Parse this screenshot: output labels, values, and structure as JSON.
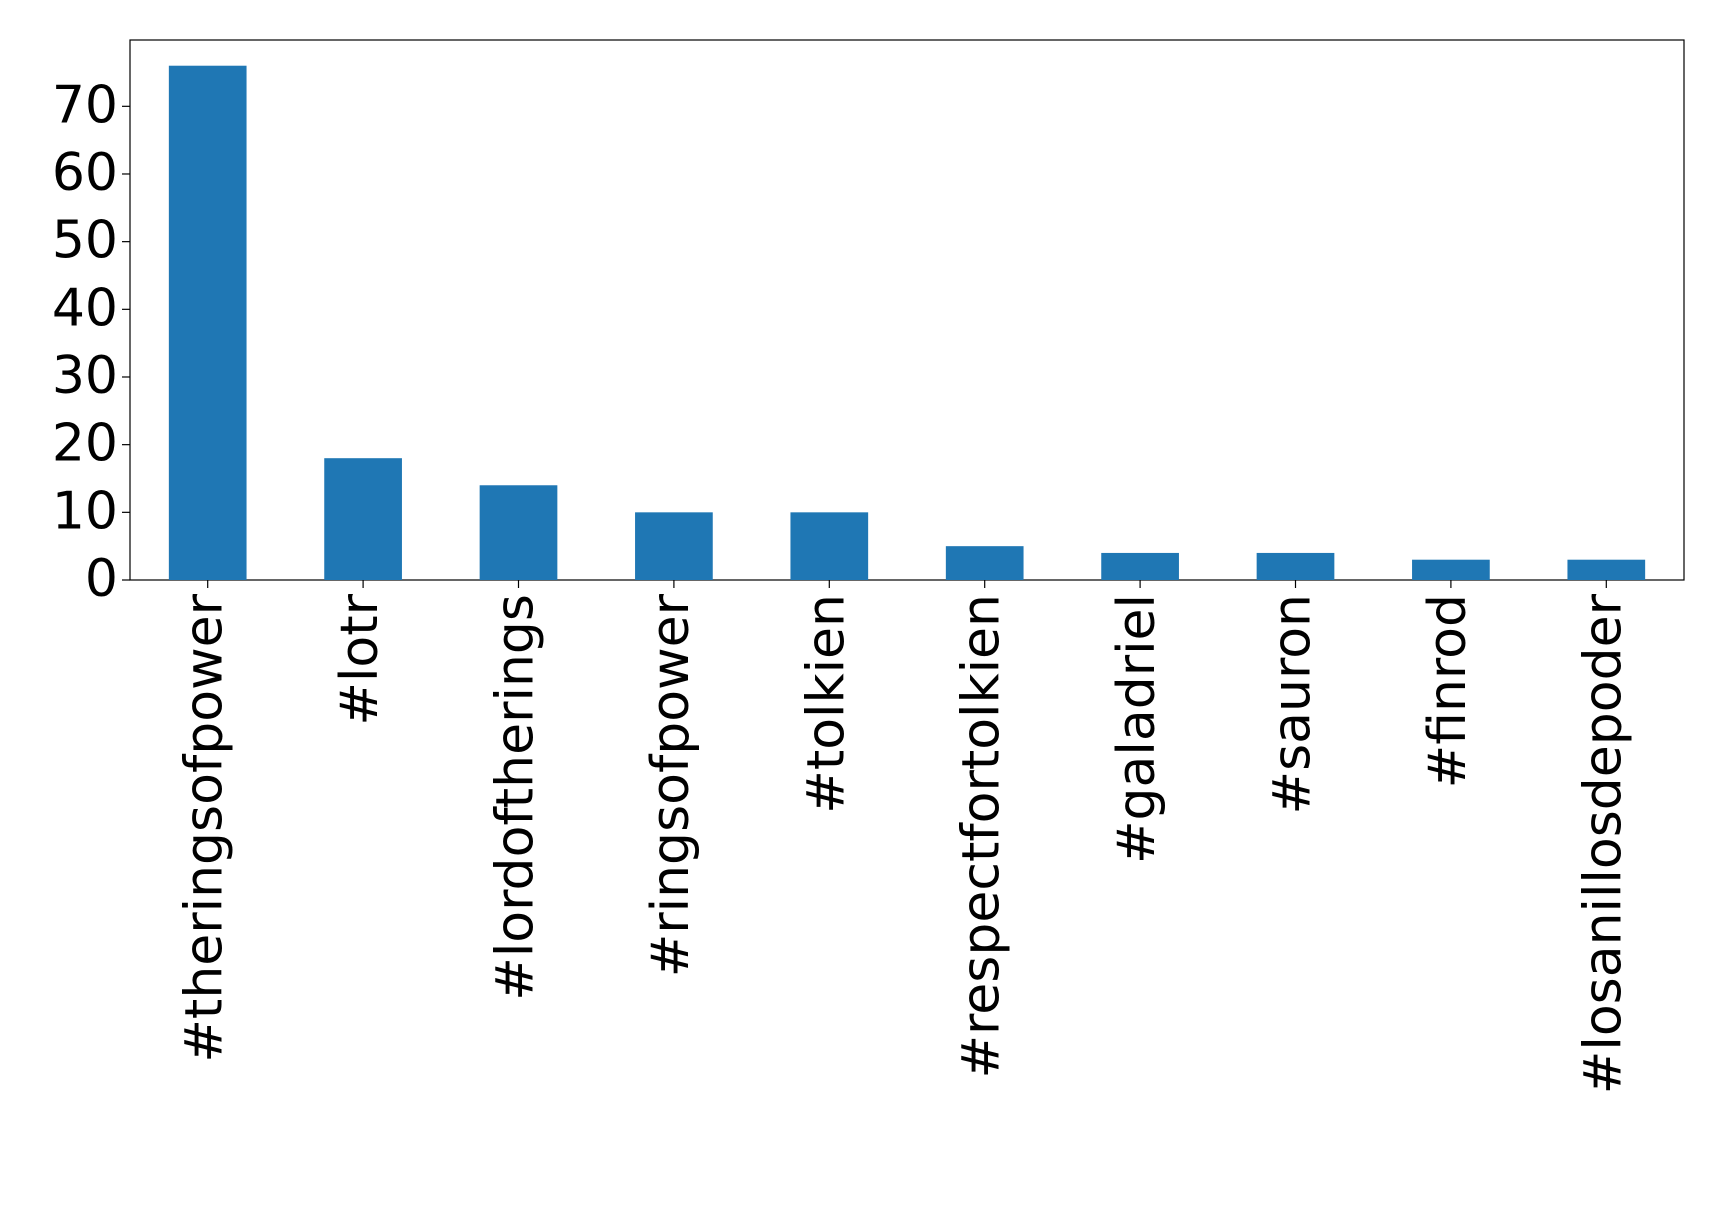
{
  "chart_data": {
    "type": "bar",
    "categories": [
      "#theringsofpower",
      "#lotr",
      "#lordoftherings",
      "#ringsofpower",
      "#tolkien",
      "#respectfortolkien",
      "#galadriel",
      "#sauron",
      "#finrod",
      "#losanillosdepoder"
    ],
    "values": [
      76,
      18,
      14,
      10,
      10,
      5,
      4,
      4,
      3,
      3
    ],
    "color": "#1f77b4",
    "ylim": [
      0,
      79.8
    ],
    "yticks": [
      0,
      10,
      20,
      30,
      40,
      50,
      60,
      70
    ],
    "grid": false
  }
}
